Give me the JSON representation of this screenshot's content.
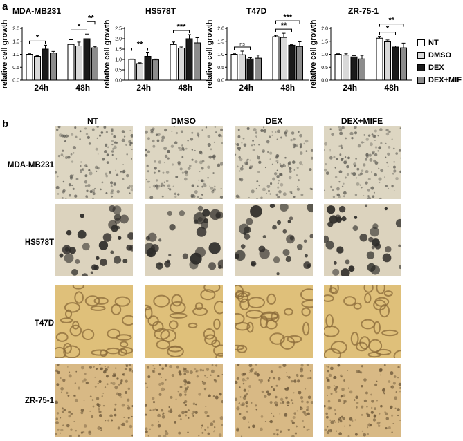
{
  "panel_a": {
    "letter": "a"
  },
  "panel_b": {
    "letter": "b"
  },
  "chart_data": [
    {
      "type": "bar",
      "title": "MDA-MB231",
      "ylabel": "relative cell growth",
      "categories": [
        "24h",
        "48h"
      ],
      "ylim": [
        0,
        2.0
      ],
      "yticks": [
        "0.0",
        "0.5",
        "1.0",
        "1.5",
        "2.0"
      ],
      "series": [
        {
          "name": "NT",
          "values": [
            1.0,
            1.38
          ],
          "errors": [
            0.02,
            0.18
          ]
        },
        {
          "name": "DMSO",
          "values": [
            0.92,
            1.32
          ],
          "errors": [
            0.03,
            0.15
          ]
        },
        {
          "name": "DEX",
          "values": [
            1.2,
            1.6
          ],
          "errors": [
            0.15,
            0.18
          ]
        },
        {
          "name": "DEX+MIF",
          "values": [
            1.05,
            1.25
          ],
          "errors": [
            0.06,
            0.05
          ]
        }
      ],
      "significance": [
        {
          "category": "24h",
          "from": "NT",
          "to": "DEX",
          "label": "*"
        },
        {
          "category": "48h",
          "from": "NT",
          "to": "DEX",
          "label": "*"
        },
        {
          "category": "48h",
          "from": "DEX",
          "to": "DEX+MIF",
          "label": "**"
        }
      ]
    },
    {
      "type": "bar",
      "title": "HS578T",
      "ylabel": "relative cell growth",
      "categories": [
        "24h",
        "48h"
      ],
      "ylim": [
        0,
        2.5
      ],
      "yticks": [
        "0.0",
        "0.5",
        "1.0",
        "1.5",
        "2.0",
        "2.5"
      ],
      "series": [
        {
          "name": "NT",
          "values": [
            1.0,
            1.72
          ],
          "errors": [
            0.02,
            0.12
          ]
        },
        {
          "name": "DMSO",
          "values": [
            0.8,
            1.55
          ],
          "errors": [
            0.04,
            0.05
          ]
        },
        {
          "name": "DEX",
          "values": [
            1.15,
            2.0
          ],
          "errors": [
            0.2,
            0.2
          ]
        },
        {
          "name": "DEX+MIF",
          "values": [
            0.98,
            1.8
          ],
          "errors": [
            0.04,
            0.25
          ]
        }
      ],
      "significance": [
        {
          "category": "24h",
          "from": "NT",
          "to": "DEX",
          "label": "**"
        },
        {
          "category": "48h",
          "from": "NT",
          "to": "DEX",
          "label": "***"
        }
      ]
    },
    {
      "type": "bar",
      "title": "T47D",
      "ylabel": "relative cell growth",
      "categories": [
        "24h",
        "48h"
      ],
      "ylim": [
        0,
        2.0
      ],
      "yticks": [
        "0.0",
        "0.5",
        "1.0",
        "1.5",
        "2.0"
      ],
      "series": [
        {
          "name": "NT",
          "values": [
            1.0,
            1.68
          ],
          "errors": [
            0.02,
            0.05
          ]
        },
        {
          "name": "DMSO",
          "values": [
            0.98,
            1.65
          ],
          "errors": [
            0.14,
            0.16
          ]
        },
        {
          "name": "DEX",
          "values": [
            0.82,
            1.35
          ],
          "errors": [
            0.05,
            0.02
          ]
        },
        {
          "name": "DEX+MIF",
          "values": [
            0.85,
            1.3
          ],
          "errors": [
            0.12,
            0.18
          ]
        }
      ],
      "significance": [
        {
          "category": "24h",
          "from": "NT",
          "to": "DEX",
          "label": "ns"
        },
        {
          "category": "48h",
          "from": "NT",
          "to": "DEX",
          "label": "**"
        },
        {
          "category": "48h",
          "from": "NT",
          "to": "DEX+MIF",
          "label": "***"
        }
      ]
    },
    {
      "type": "bar",
      "title": "ZR-75-1",
      "ylabel": "relative cell growth",
      "categories": [
        "24h",
        "48h"
      ],
      "ylim": [
        0,
        2.0
      ],
      "yticks": [
        "0.0",
        "0.5",
        "1.0",
        "1.5",
        "2.0"
      ],
      "series": [
        {
          "name": "NT",
          "values": [
            1.0,
            1.62
          ],
          "errors": [
            0.02,
            0.07
          ]
        },
        {
          "name": "DMSO",
          "values": [
            0.97,
            1.48
          ],
          "errors": [
            0.05,
            0.07
          ]
        },
        {
          "name": "DEX",
          "values": [
            0.9,
            1.28
          ],
          "errors": [
            0.05,
            0.04
          ]
        },
        {
          "name": "DEX+MIF",
          "values": [
            0.82,
            1.25
          ],
          "errors": [
            0.14,
            0.18
          ]
        }
      ],
      "significance": [
        {
          "category": "48h",
          "from": "NT",
          "to": "DEX",
          "label": "*"
        },
        {
          "category": "48h",
          "from": "NT",
          "to": "DEX+MIF",
          "label": "**"
        }
      ]
    }
  ],
  "legend": [
    {
      "label": "NT",
      "color": "#ffffff"
    },
    {
      "label": "DMSO",
      "color": "#d9d9d9"
    },
    {
      "label": "DEX",
      "color": "#1a1a1a"
    },
    {
      "label": "DEX+MIF",
      "color": "#8c8c8c"
    }
  ],
  "micrographs": {
    "columns": [
      "NT",
      "DMSO",
      "DEX",
      "DEX+MIFE"
    ],
    "rows": [
      {
        "label": "MDA-MB231",
        "bg": "#ddd6c2",
        "cell": "#5e5c55",
        "style": "small"
      },
      {
        "label": "HS578T",
        "bg": "#dcd3be",
        "cell": "#2e2c29",
        "style": "spheroid"
      },
      {
        "label": "T47D",
        "bg": "#dfc07a",
        "cell": "#8a6a3a",
        "style": "cluster"
      },
      {
        "label": "ZR-75-1",
        "bg": "#d8b985",
        "cell": "#6b5638",
        "style": "small"
      }
    ]
  }
}
